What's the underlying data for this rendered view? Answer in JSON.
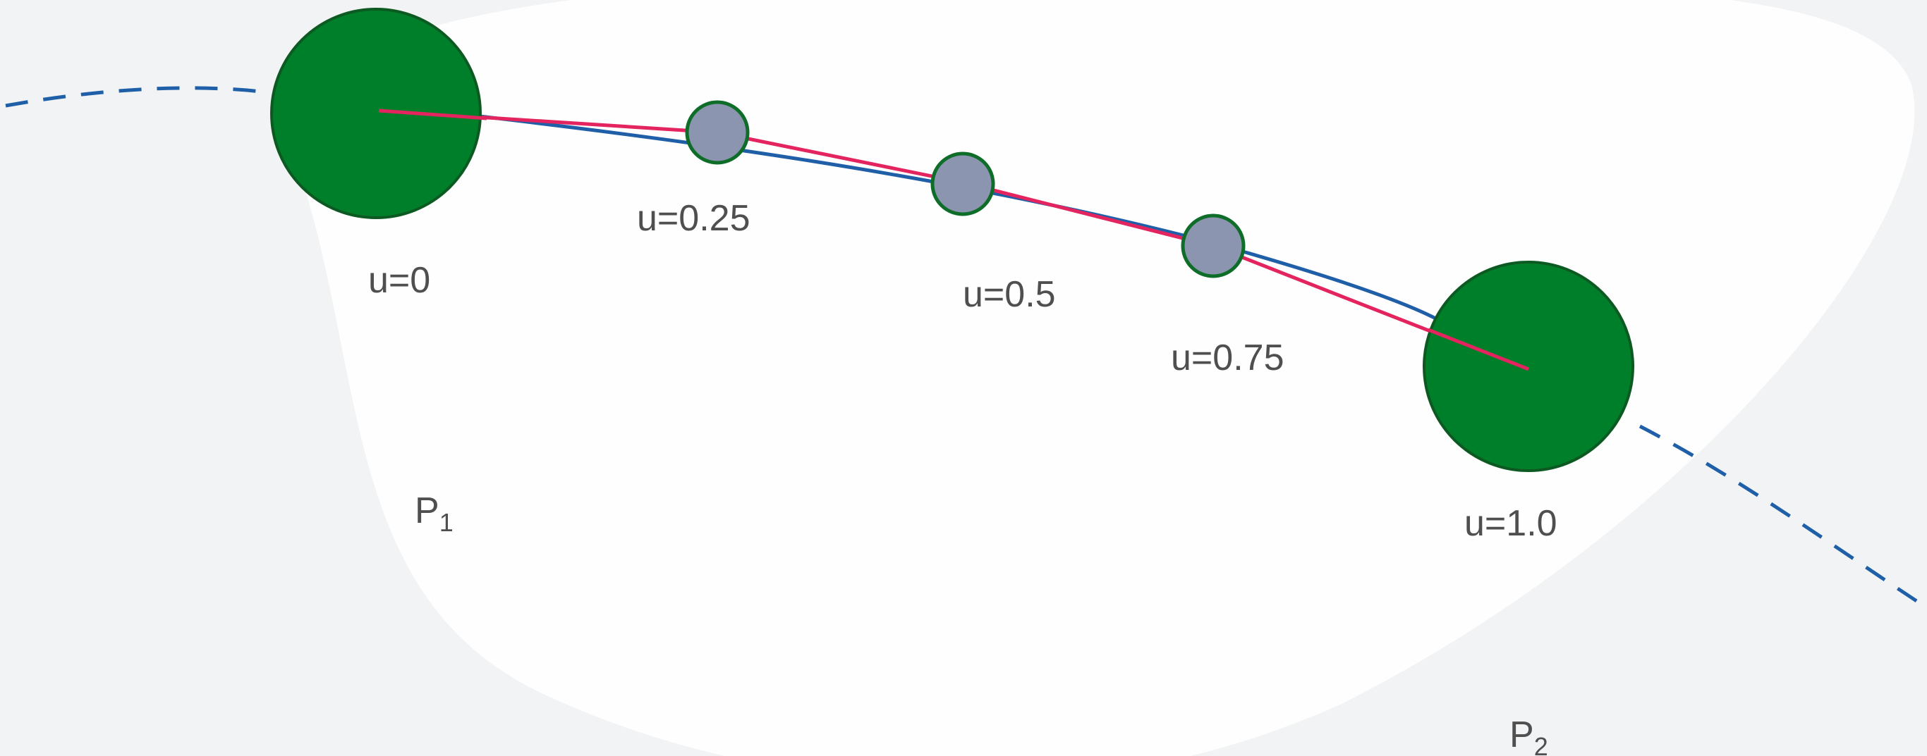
{
  "colors": {
    "background": "#f1f3f4",
    "blob": "#ffffff",
    "curve": "#1f5fa8",
    "chord": "#e3245e",
    "endpoint_fill": "#007f2a",
    "endpoint_stroke": "#0c5a22",
    "sample_fill": "#8c95b0",
    "sample_stroke": "#0f6d2a",
    "text": "#4f4f4f"
  },
  "points": {
    "start": {
      "label": "u=0"
    },
    "q1": {
      "label": "u=0.25"
    },
    "mid": {
      "label": "u=0.5"
    },
    "q3": {
      "label": "u=0.75"
    },
    "end": {
      "label": "u=1.0"
    }
  },
  "control_points": {
    "p1": {
      "letter": "P",
      "subscript": "1"
    },
    "p2": {
      "letter": "P",
      "subscript": "2"
    }
  }
}
